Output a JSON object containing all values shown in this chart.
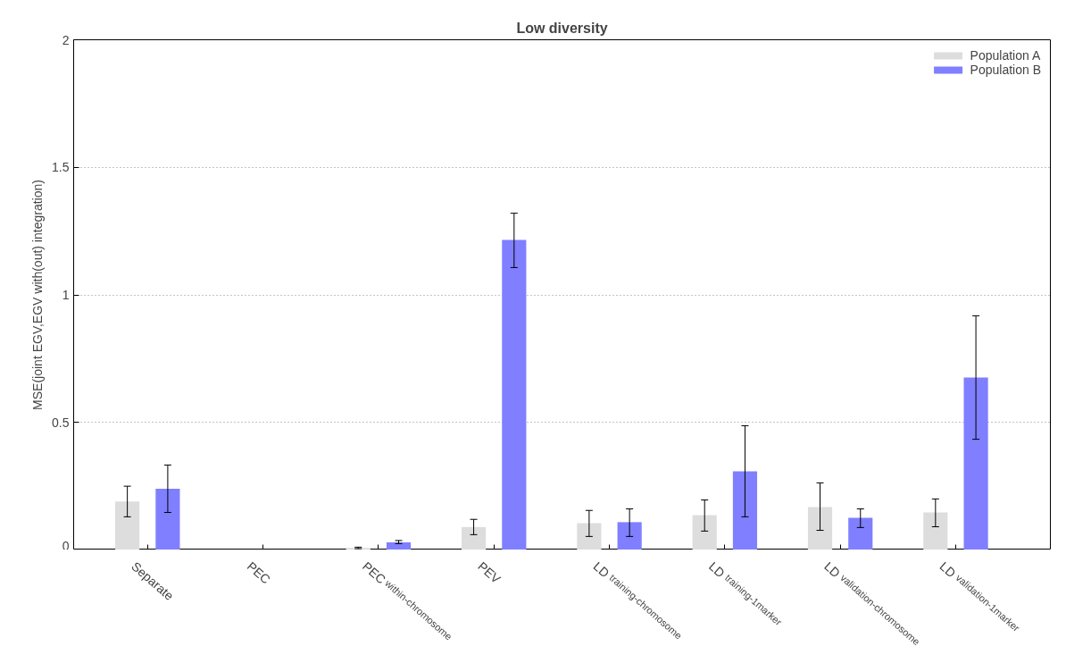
{
  "chart_data": {
    "type": "bar",
    "title": "Low diversity",
    "ylabel": "MSE(joint EGV,EGV with(out) integration)",
    "categories": [
      "Separate",
      "PEC",
      "PEC$_{within-chromosome}$",
      "PEV",
      "LD$_{training-chromosome}$",
      "LD$_{training-1marker}$",
      "LD$_{validation-chromosome}$",
      "LD$_{validation-1marker}$"
    ],
    "series": [
      {
        "name": "Population A",
        "color": "#dddddd",
        "values": [
          0.19,
          0,
          0.008,
          0.09,
          0.105,
          0.137,
          0.168,
          0.147
        ],
        "errors": [
          [
            0.13,
            0.25
          ],
          null,
          [
            0.005,
            0.011
          ],
          [
            0.06,
            0.12
          ],
          [
            0.053,
            0.155
          ],
          [
            0.074,
            0.196
          ],
          [
            0.077,
            0.263
          ],
          [
            0.091,
            0.2
          ]
        ]
      },
      {
        "name": "Population B",
        "color": "#7f7fff",
        "values": [
          0.24,
          0,
          0.03,
          1.215,
          0.109,
          0.308,
          0.126,
          0.676
        ],
        "errors": [
          [
            0.147,
            0.333
          ],
          null,
          [
            0.025,
            0.037
          ],
          [
            1.107,
            1.32
          ],
          [
            0.053,
            0.161
          ],
          [
            0.13,
            0.487
          ],
          [
            0.088,
            0.161
          ],
          [
            0.434,
            0.918
          ]
        ]
      }
    ],
    "ylim": [
      0,
      2
    ],
    "yticks": [
      0,
      0.5,
      1,
      1.5,
      2
    ],
    "grid": "y",
    "legend": "top right"
  }
}
